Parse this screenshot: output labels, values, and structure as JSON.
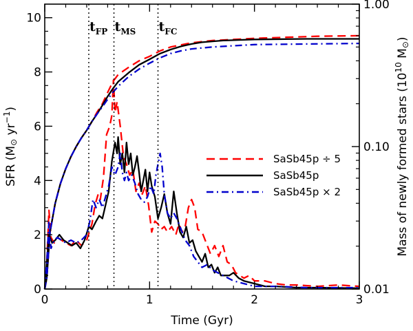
{
  "chart_data": {
    "type": "line",
    "title": "",
    "xlabel": "Time (Gyr)",
    "ylabel": {
      "main": "SFR (M",
      "sun_symbol": "⊙",
      "unit": " yr",
      "exp": "−1",
      "close": ")"
    },
    "y2label": {
      "main": "Mass of newly formed stars (10",
      "exp": "10",
      "unit": " M",
      "sun_symbol": "⊙",
      "close": ")"
    },
    "xlim": [
      0,
      3
    ],
    "ylim": [
      0,
      10.5
    ],
    "y2lim_log": [
      0.01,
      1.0
    ],
    "xticks": [
      0,
      1,
      2,
      3
    ],
    "xtick_labels": [
      "0",
      "1",
      "2",
      "3"
    ],
    "yticks": [
      0,
      2,
      4,
      6,
      8,
      10
    ],
    "ytick_labels": [
      "0",
      "2",
      "4",
      "6",
      "8",
      "10"
    ],
    "y2ticks": [
      0.01,
      0.1,
      1.0
    ],
    "y2tick_labels": [
      "0.01",
      "0.10",
      "1.00"
    ],
    "markers": [
      {
        "name": "t_FP",
        "main": "t",
        "sub": "FP",
        "x": 0.42
      },
      {
        "name": "t_MS",
        "main": "t",
        "sub": "MS",
        "x": 0.66
      },
      {
        "name": "t_FC",
        "main": "t",
        "sub": "FC",
        "x": 1.08
      }
    ],
    "series": [
      {
        "name": "SaSb45p ÷ 5",
        "color": "#ff0000",
        "style": "dashed",
        "sfr": [
          [
            0,
            0
          ],
          [
            0.02,
            1.0
          ],
          [
            0.04,
            2.9
          ],
          [
            0.06,
            1.9
          ],
          [
            0.09,
            1.7
          ],
          [
            0.12,
            1.9
          ],
          [
            0.16,
            1.8
          ],
          [
            0.2,
            1.7
          ],
          [
            0.25,
            1.6
          ],
          [
            0.3,
            1.8
          ],
          [
            0.35,
            1.6
          ],
          [
            0.4,
            1.8
          ],
          [
            0.45,
            2.4
          ],
          [
            0.48,
            3.1
          ],
          [
            0.51,
            3.5
          ],
          [
            0.53,
            3.3
          ],
          [
            0.56,
            4.1
          ],
          [
            0.59,
            5.7
          ],
          [
            0.62,
            6.0
          ],
          [
            0.64,
            6.4
          ],
          [
            0.655,
            7.7
          ],
          [
            0.67,
            6.5
          ],
          [
            0.69,
            6.9
          ],
          [
            0.72,
            6.0
          ],
          [
            0.75,
            4.9
          ],
          [
            0.78,
            4.6
          ],
          [
            0.81,
            4.2
          ],
          [
            0.84,
            4.4
          ],
          [
            0.87,
            3.6
          ],
          [
            0.9,
            3.9
          ],
          [
            0.93,
            3.5
          ],
          [
            0.96,
            3.8
          ],
          [
            0.99,
            3.1
          ],
          [
            1.02,
            2.1
          ],
          [
            1.05,
            2.5
          ],
          [
            1.08,
            2.4
          ],
          [
            1.11,
            2.2
          ],
          [
            1.14,
            2.3
          ],
          [
            1.17,
            2.1
          ],
          [
            1.21,
            2.3
          ],
          [
            1.25,
            2.0
          ],
          [
            1.28,
            2.4
          ],
          [
            1.31,
            2.1
          ],
          [
            1.34,
            2.3
          ],
          [
            1.37,
            3.0
          ],
          [
            1.4,
            3.3
          ],
          [
            1.43,
            3.0
          ],
          [
            1.46,
            2.2
          ],
          [
            1.5,
            2.1
          ],
          [
            1.54,
            1.7
          ],
          [
            1.58,
            1.3
          ],
          [
            1.62,
            1.6
          ],
          [
            1.66,
            1.2
          ],
          [
            1.7,
            1.6
          ],
          [
            1.74,
            1.0
          ],
          [
            1.78,
            0.9
          ],
          [
            1.82,
            0.6
          ],
          [
            1.86,
            0.5
          ],
          [
            1.9,
            0.4
          ],
          [
            1.95,
            0.5
          ],
          [
            2.0,
            0.3
          ],
          [
            2.1,
            0.3
          ],
          [
            2.2,
            0.2
          ],
          [
            2.3,
            0.15
          ],
          [
            2.4,
            0.15
          ],
          [
            2.6,
            0.1
          ],
          [
            2.8,
            0.15
          ],
          [
            3.0,
            0.1
          ]
        ],
        "mass": [
          [
            0.0,
            0.01
          ],
          [
            0.02,
            0.012
          ],
          [
            0.05,
            0.025
          ],
          [
            0.1,
            0.04
          ],
          [
            0.15,
            0.055
          ],
          [
            0.2,
            0.07
          ],
          [
            0.25,
            0.085
          ],
          [
            0.3,
            0.1
          ],
          [
            0.35,
            0.115
          ],
          [
            0.4,
            0.13
          ],
          [
            0.45,
            0.15
          ],
          [
            0.5,
            0.175
          ],
          [
            0.55,
            0.2
          ],
          [
            0.6,
            0.24
          ],
          [
            0.65,
            0.285
          ],
          [
            0.7,
            0.32
          ],
          [
            0.8,
            0.36
          ],
          [
            0.9,
            0.4
          ],
          [
            1.0,
            0.43
          ],
          [
            1.1,
            0.47
          ],
          [
            1.2,
            0.5
          ],
          [
            1.4,
            0.535
          ],
          [
            1.6,
            0.555
          ],
          [
            1.8,
            0.565
          ],
          [
            2.0,
            0.575
          ],
          [
            2.3,
            0.585
          ],
          [
            2.6,
            0.595
          ],
          [
            3.0,
            0.6
          ]
        ]
      },
      {
        "name": "SaSb45p",
        "color": "#000000",
        "style": "solid",
        "sfr": [
          [
            0,
            0
          ],
          [
            0.02,
            1.0
          ],
          [
            0.04,
            2.0
          ],
          [
            0.07,
            1.7
          ],
          [
            0.1,
            1.8
          ],
          [
            0.14,
            2.0
          ],
          [
            0.18,
            1.8
          ],
          [
            0.22,
            1.7
          ],
          [
            0.26,
            1.6
          ],
          [
            0.3,
            1.7
          ],
          [
            0.34,
            1.5
          ],
          [
            0.38,
            1.8
          ],
          [
            0.42,
            2.3
          ],
          [
            0.45,
            2.2
          ],
          [
            0.49,
            2.5
          ],
          [
            0.52,
            2.7
          ],
          [
            0.55,
            2.6
          ],
          [
            0.58,
            3.1
          ],
          [
            0.61,
            3.6
          ],
          [
            0.64,
            4.7
          ],
          [
            0.67,
            5.4
          ],
          [
            0.69,
            5.0
          ],
          [
            0.7,
            5.6
          ],
          [
            0.72,
            4.6
          ],
          [
            0.74,
            5.0
          ],
          [
            0.76,
            4.3
          ],
          [
            0.78,
            5.4
          ],
          [
            0.8,
            4.6
          ],
          [
            0.82,
            5.0
          ],
          [
            0.84,
            4.2
          ],
          [
            0.86,
            4.5
          ],
          [
            0.88,
            4.9
          ],
          [
            0.9,
            4.3
          ],
          [
            0.92,
            3.6
          ],
          [
            0.94,
            4.0
          ],
          [
            0.96,
            4.4
          ],
          [
            0.98,
            3.6
          ],
          [
            1.0,
            4.3
          ],
          [
            1.02,
            3.8
          ],
          [
            1.05,
            3.4
          ],
          [
            1.08,
            2.6
          ],
          [
            1.11,
            3.0
          ],
          [
            1.14,
            3.5
          ],
          [
            1.17,
            2.8
          ],
          [
            1.2,
            2.4
          ],
          [
            1.23,
            3.6
          ],
          [
            1.26,
            2.8
          ],
          [
            1.29,
            2.1
          ],
          [
            1.32,
            1.9
          ],
          [
            1.35,
            2.3
          ],
          [
            1.38,
            1.7
          ],
          [
            1.41,
            1.8
          ],
          [
            1.44,
            1.4
          ],
          [
            1.47,
            1.2
          ],
          [
            1.5,
            1.0
          ],
          [
            1.53,
            1.3
          ],
          [
            1.56,
            0.8
          ],
          [
            1.59,
            0.9
          ],
          [
            1.62,
            0.6
          ],
          [
            1.65,
            0.8
          ],
          [
            1.68,
            0.5
          ],
          [
            1.72,
            0.5
          ],
          [
            1.76,
            0.5
          ],
          [
            1.8,
            0.6
          ],
          [
            1.85,
            0.4
          ],
          [
            1.9,
            0.3
          ],
          [
            2.0,
            0.2
          ],
          [
            2.1,
            0.1
          ],
          [
            2.2,
            0.1
          ],
          [
            2.4,
            0.05
          ],
          [
            2.6,
            0.05
          ],
          [
            3.0,
            0.03
          ]
        ],
        "mass": [
          [
            0.0,
            0.01
          ],
          [
            0.02,
            0.012
          ],
          [
            0.05,
            0.025
          ],
          [
            0.1,
            0.04
          ],
          [
            0.15,
            0.055
          ],
          [
            0.2,
            0.07
          ],
          [
            0.25,
            0.085
          ],
          [
            0.3,
            0.1
          ],
          [
            0.35,
            0.115
          ],
          [
            0.4,
            0.13
          ],
          [
            0.45,
            0.15
          ],
          [
            0.5,
            0.17
          ],
          [
            0.55,
            0.195
          ],
          [
            0.6,
            0.225
          ],
          [
            0.65,
            0.255
          ],
          [
            0.7,
            0.285
          ],
          [
            0.8,
            0.33
          ],
          [
            0.9,
            0.375
          ],
          [
            1.0,
            0.41
          ],
          [
            1.1,
            0.45
          ],
          [
            1.2,
            0.48
          ],
          [
            1.3,
            0.505
          ],
          [
            1.4,
            0.525
          ],
          [
            1.5,
            0.54
          ],
          [
            1.7,
            0.555
          ],
          [
            2.0,
            0.565
          ],
          [
            2.5,
            0.57
          ],
          [
            3.0,
            0.57
          ]
        ]
      },
      {
        "name": "SaSb45p × 2",
        "color": "#0000cc",
        "style": "dashdot",
        "sfr": [
          [
            0,
            0
          ],
          [
            0.02,
            1.0
          ],
          [
            0.04,
            2.5
          ],
          [
            0.06,
            1.5
          ],
          [
            0.09,
            1.8
          ],
          [
            0.12,
            1.9
          ],
          [
            0.16,
            1.8
          ],
          [
            0.2,
            1.7
          ],
          [
            0.25,
            1.8
          ],
          [
            0.3,
            1.7
          ],
          [
            0.35,
            1.8
          ],
          [
            0.4,
            2.0
          ],
          [
            0.43,
            2.5
          ],
          [
            0.46,
            3.3
          ],
          [
            0.49,
            3.0
          ],
          [
            0.52,
            3.3
          ],
          [
            0.55,
            3.0
          ],
          [
            0.58,
            3.4
          ],
          [
            0.61,
            3.8
          ],
          [
            0.64,
            4.5
          ],
          [
            0.67,
            4.2
          ],
          [
            0.7,
            4.5
          ],
          [
            0.72,
            5.0
          ],
          [
            0.74,
            4.3
          ],
          [
            0.76,
            4.0
          ],
          [
            0.78,
            4.3
          ],
          [
            0.8,
            4.0
          ],
          [
            0.83,
            4.2
          ],
          [
            0.86,
            3.9
          ],
          [
            0.89,
            3.5
          ],
          [
            0.92,
            3.3
          ],
          [
            0.95,
            3.2
          ],
          [
            0.98,
            3.4
          ],
          [
            1.01,
            3.8
          ],
          [
            1.04,
            3.5
          ],
          [
            1.06,
            4.2
          ],
          [
            1.08,
            4.6
          ],
          [
            1.1,
            5.0
          ],
          [
            1.12,
            4.5
          ],
          [
            1.14,
            3.5
          ],
          [
            1.17,
            2.8
          ],
          [
            1.2,
            2.6
          ],
          [
            1.23,
            2.8
          ],
          [
            1.26,
            2.6
          ],
          [
            1.3,
            2.2
          ],
          [
            1.34,
            1.8
          ],
          [
            1.38,
            1.6
          ],
          [
            1.42,
            1.2
          ],
          [
            1.46,
            1.0
          ],
          [
            1.5,
            0.8
          ],
          [
            1.55,
            0.9
          ],
          [
            1.6,
            0.7
          ],
          [
            1.65,
            0.6
          ],
          [
            1.7,
            0.5
          ],
          [
            1.75,
            0.4
          ],
          [
            1.8,
            0.3
          ],
          [
            1.9,
            0.2
          ],
          [
            2.0,
            0.1
          ],
          [
            2.2,
            0.1
          ],
          [
            2.5,
            0.05
          ],
          [
            3.0,
            0.05
          ]
        ],
        "mass": [
          [
            0.0,
            0.01
          ],
          [
            0.02,
            0.012
          ],
          [
            0.05,
            0.025
          ],
          [
            0.1,
            0.04
          ],
          [
            0.15,
            0.055
          ],
          [
            0.2,
            0.07
          ],
          [
            0.25,
            0.085
          ],
          [
            0.3,
            0.1
          ],
          [
            0.35,
            0.115
          ],
          [
            0.4,
            0.13
          ],
          [
            0.45,
            0.15
          ],
          [
            0.5,
            0.17
          ],
          [
            0.55,
            0.19
          ],
          [
            0.6,
            0.215
          ],
          [
            0.65,
            0.24
          ],
          [
            0.7,
            0.265
          ],
          [
            0.8,
            0.31
          ],
          [
            0.9,
            0.35
          ],
          [
            1.0,
            0.385
          ],
          [
            1.1,
            0.42
          ],
          [
            1.2,
            0.45
          ],
          [
            1.3,
            0.47
          ],
          [
            1.4,
            0.485
          ],
          [
            1.6,
            0.5
          ],
          [
            1.8,
            0.51
          ],
          [
            2.0,
            0.52
          ],
          [
            2.5,
            0.525
          ],
          [
            3.0,
            0.53
          ]
        ]
      }
    ],
    "legend": {
      "position": "right-middle",
      "entries": [
        "SaSb45p ÷ 5",
        "SaSb45p",
        "SaSb45p × 2"
      ]
    }
  }
}
